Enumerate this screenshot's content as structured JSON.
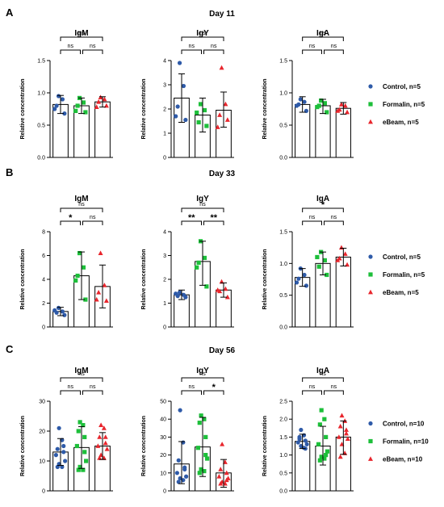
{
  "colors": {
    "control": "#2e5aa8",
    "formalin": "#1dbf3a",
    "ebeam": "#e8262d"
  },
  "legend": {
    "panel_A": [
      "Control, n=5",
      "Formalin, n=5",
      "eBeam, n=5"
    ],
    "panel_B": [
      "Control, n=5",
      "Formalin, n=5",
      "eBeam, n=5"
    ],
    "panel_C": [
      "Control, n=10",
      "Formalin, n=10",
      "eBeam, n=10"
    ]
  },
  "chart_data": [
    {
      "panel": "A",
      "day_title": "Day 11",
      "title": "IgM",
      "type": "bar",
      "ylabel": "Relative concentration",
      "ylim": [
        0,
        1.5
      ],
      "yticks": [
        "0.0",
        "0.5",
        "1.0",
        "1.5"
      ],
      "categories": [
        "Control",
        "Formalin",
        "eBeam"
      ],
      "means": [
        0.82,
        0.8,
        0.86
      ],
      "sd": [
        [
          0.68,
          0.96
        ],
        [
          0.68,
          0.92
        ],
        [
          0.78,
          0.94
        ]
      ],
      "points": [
        [
          0.95,
          0.9,
          0.8,
          0.68,
          0.75
        ],
        [
          0.92,
          0.85,
          0.8,
          0.7,
          0.72
        ],
        [
          0.93,
          0.9,
          0.86,
          0.8,
          0.78
        ]
      ],
      "comparisons": [
        {
          "pair": [
            0,
            1
          ],
          "label": "ns",
          "row": 0
        },
        {
          "pair": [
            1,
            2
          ],
          "label": "ns",
          "row": 0
        },
        {
          "pair": [
            0,
            2
          ],
          "label": "ns",
          "row": 1
        }
      ]
    },
    {
      "panel": "A",
      "title": "IgY",
      "type": "bar",
      "ylabel": "Relative concentration",
      "ylim": [
        0,
        4
      ],
      "yticks": [
        "0",
        "1",
        "2",
        "3",
        "4"
      ],
      "categories": [
        "Control",
        "Formalin",
        "eBeam"
      ],
      "means": [
        2.45,
        1.75,
        1.95
      ],
      "sd": [
        [
          1.45,
          3.45
        ],
        [
          1.05,
          2.45
        ],
        [
          1.25,
          2.7
        ]
      ],
      "points": [
        [
          3.9,
          2.95,
          2.1,
          1.55,
          1.7
        ],
        [
          2.2,
          1.95,
          1.45,
          1.3,
          1.85
        ],
        [
          3.7,
          2.2,
          1.75,
          1.55,
          1.25
        ]
      ],
      "comparisons": [
        {
          "pair": [
            0,
            1
          ],
          "label": "ns",
          "row": 0
        },
        {
          "pair": [
            1,
            2
          ],
          "label": "ns",
          "row": 0
        },
        {
          "pair": [
            0,
            2
          ],
          "label": "ns",
          "row": 1
        }
      ]
    },
    {
      "panel": "A",
      "title": "IgA",
      "type": "bar",
      "ylabel": "Relative concentration",
      "ylim": [
        0,
        1.5
      ],
      "yticks": [
        "0.0",
        "0.5",
        "1.0",
        "1.5"
      ],
      "categories": [
        "Control",
        "Formalin",
        "eBeam"
      ],
      "means": [
        0.82,
        0.8,
        0.76
      ],
      "sd": [
        [
          0.7,
          0.94
        ],
        [
          0.68,
          0.9
        ],
        [
          0.67,
          0.85
        ]
      ],
      "points": [
        [
          0.9,
          0.86,
          0.82,
          0.72,
          0.8
        ],
        [
          0.88,
          0.84,
          0.8,
          0.7,
          0.78
        ],
        [
          0.82,
          0.8,
          0.74,
          0.7,
          0.72
        ]
      ],
      "comparisons": [
        {
          "pair": [
            0,
            1
          ],
          "label": "ns",
          "row": 0
        },
        {
          "pair": [
            1,
            2
          ],
          "label": "ns",
          "row": 0
        },
        {
          "pair": [
            0,
            2
          ],
          "label": "ns",
          "row": 1
        }
      ]
    },
    {
      "panel": "B",
      "day_title": "Day 33",
      "title": "IgM",
      "type": "bar",
      "ylabel": "Relative concentration",
      "ylim": [
        0,
        8
      ],
      "yticks": [
        "0",
        "2",
        "4",
        "6",
        "8"
      ],
      "categories": [
        "Control",
        "Formalin",
        "eBeam"
      ],
      "means": [
        1.3,
        4.3,
        3.4
      ],
      "sd": [
        [
          0.95,
          1.65
        ],
        [
          2.3,
          6.3
        ],
        [
          1.6,
          5.2
        ]
      ],
      "points": [
        [
          1.6,
          1.3,
          1.2,
          1.0,
          1.4
        ],
        [
          6.2,
          5.0,
          4.3,
          2.3,
          3.9
        ],
        [
          6.2,
          3.5,
          2.9,
          2.2,
          2.3
        ]
      ],
      "comparisons": [
        {
          "pair": [
            0,
            1
          ],
          "label": "*",
          "row": 0
        },
        {
          "pair": [
            1,
            2
          ],
          "label": "ns",
          "row": 0
        },
        {
          "pair": [
            0,
            2
          ],
          "label": "ns",
          "row": 1
        }
      ]
    },
    {
      "panel": "B",
      "title": "IgY",
      "type": "bar",
      "ylabel": "Relative concentration",
      "ylim": [
        0,
        4
      ],
      "yticks": [
        "0",
        "1",
        "2",
        "3",
        "4"
      ],
      "categories": [
        "Control",
        "Formalin",
        "eBeam"
      ],
      "means": [
        1.35,
        2.75,
        1.55
      ],
      "sd": [
        [
          1.15,
          1.55
        ],
        [
          1.75,
          3.6
        ],
        [
          1.25,
          1.85
        ]
      ],
      "points": [
        [
          1.45,
          1.35,
          1.3,
          1.25,
          1.4
        ],
        [
          3.6,
          2.9,
          2.7,
          1.7,
          2.5
        ],
        [
          1.9,
          1.6,
          1.5,
          1.25,
          1.55
        ]
      ],
      "comparisons": [
        {
          "pair": [
            0,
            1
          ],
          "label": "**",
          "row": 0
        },
        {
          "pair": [
            1,
            2
          ],
          "label": "**",
          "row": 0
        },
        {
          "pair": [
            0,
            2
          ],
          "label": "ns",
          "row": 1
        }
      ]
    },
    {
      "panel": "B",
      "title": "IgA",
      "type": "bar",
      "ylabel": "Relative concentration",
      "ylim": [
        0,
        1.5
      ],
      "yticks": [
        "0.0",
        "0.5",
        "1.0",
        "1.5"
      ],
      "categories": [
        "Control",
        "Formalin",
        "eBeam"
      ],
      "means": [
        0.78,
        1.0,
        1.1
      ],
      "sd": [
        [
          0.64,
          0.92
        ],
        [
          0.82,
          1.18
        ],
        [
          0.96,
          1.24
        ]
      ],
      "points": [
        [
          0.92,
          0.82,
          0.76,
          0.65,
          0.7
        ],
        [
          1.18,
          1.05,
          0.95,
          0.82,
          1.1
        ],
        [
          1.25,
          1.15,
          1.08,
          0.98,
          1.05
        ]
      ],
      "comparisons": [
        {
          "pair": [
            0,
            1
          ],
          "label": "ns",
          "row": 0
        },
        {
          "pair": [
            1,
            2
          ],
          "label": "ns",
          "row": 0
        },
        {
          "pair": [
            0,
            2
          ],
          "label": "*",
          "row": 1
        }
      ]
    },
    {
      "panel": "C",
      "day_title": "Day 56",
      "title": "IgM",
      "type": "bar",
      "ylabel": "Relative concentration",
      "ylim": [
        0,
        30
      ],
      "yticks": [
        "0",
        "10",
        "20",
        "30"
      ],
      "categories": [
        "Control",
        "Formalin",
        "eBeam"
      ],
      "means": [
        13,
        14.5,
        15
      ],
      "sd": [
        [
          8.5,
          17.5
        ],
        [
          7.5,
          21.5
        ],
        [
          10.5,
          19.5
        ]
      ],
      "points": [
        [
          21,
          17,
          14,
          13,
          12,
          10,
          9,
          8,
          8,
          15
        ],
        [
          23,
          22,
          20,
          18,
          15,
          10,
          8,
          7,
          7,
          13
        ],
        [
          22,
          21,
          18,
          16,
          15,
          14,
          12,
          11,
          11,
          18
        ]
      ],
      "comparisons": [
        {
          "pair": [
            0,
            1
          ],
          "label": "ns",
          "row": 0
        },
        {
          "pair": [
            1,
            2
          ],
          "label": "ns",
          "row": 0
        },
        {
          "pair": [
            0,
            2
          ],
          "label": "ns",
          "row": 1
        }
      ]
    },
    {
      "panel": "C",
      "title": "IgY",
      "type": "bar",
      "ylabel": "Relative concentration",
      "ylim": [
        0,
        50
      ],
      "yticks": [
        "0",
        "10",
        "20",
        "30",
        "40",
        "50"
      ],
      "categories": [
        "Control",
        "Formalin",
        "eBeam"
      ],
      "means": [
        15,
        24.5,
        10
      ],
      "sd": [
        [
          4,
          27.5
        ],
        [
          8,
          41
        ],
        [
          2,
          17.5
        ]
      ],
      "points": [
        [
          45,
          27,
          17,
          12,
          10,
          8,
          7,
          6,
          5,
          13
        ],
        [
          42,
          40,
          38,
          30,
          24,
          18,
          12,
          11,
          10,
          20
        ],
        [
          26,
          16,
          12,
          10,
          8,
          7,
          5,
          4,
          4,
          6
        ]
      ],
      "comparisons": [
        {
          "pair": [
            0,
            1
          ],
          "label": "ns",
          "row": 0
        },
        {
          "pair": [
            1,
            2
          ],
          "label": "*",
          "row": 0
        },
        {
          "pair": [
            0,
            2
          ],
          "label": "ns",
          "row": 1
        }
      ]
    },
    {
      "panel": "C",
      "title": "IgA",
      "type": "bar",
      "ylabel": "Relative concentration",
      "ylim": [
        0,
        2.5
      ],
      "yticks": [
        "0.0",
        "0.5",
        "1.0",
        "1.5",
        "2.0",
        "2.5"
      ],
      "categories": [
        "Control",
        "Formalin",
        "eBeam"
      ],
      "means": [
        1.38,
        1.25,
        1.5
      ],
      "sd": [
        [
          1.18,
          1.58
        ],
        [
          0.72,
          1.8
        ],
        [
          1.02,
          1.95
        ]
      ],
      "points": [
        [
          1.7,
          1.55,
          1.45,
          1.4,
          1.35,
          1.3,
          1.25,
          1.2,
          1.5,
          1.18
        ],
        [
          2.25,
          2.0,
          1.85,
          1.5,
          1.3,
          1.1,
          0.95,
          0.9,
          0.85,
          1.0
        ],
        [
          2.1,
          1.95,
          1.8,
          1.6,
          1.5,
          1.45,
          1.3,
          1.05,
          0.95,
          1.7
        ]
      ],
      "comparisons": [
        {
          "pair": [
            0,
            1
          ],
          "label": "ns",
          "row": 0
        },
        {
          "pair": [
            1,
            2
          ],
          "label": "ns",
          "row": 0
        },
        {
          "pair": [
            0,
            2
          ],
          "label": "ns",
          "row": 1
        }
      ]
    }
  ],
  "panel_labels": [
    "A",
    "B",
    "C"
  ]
}
